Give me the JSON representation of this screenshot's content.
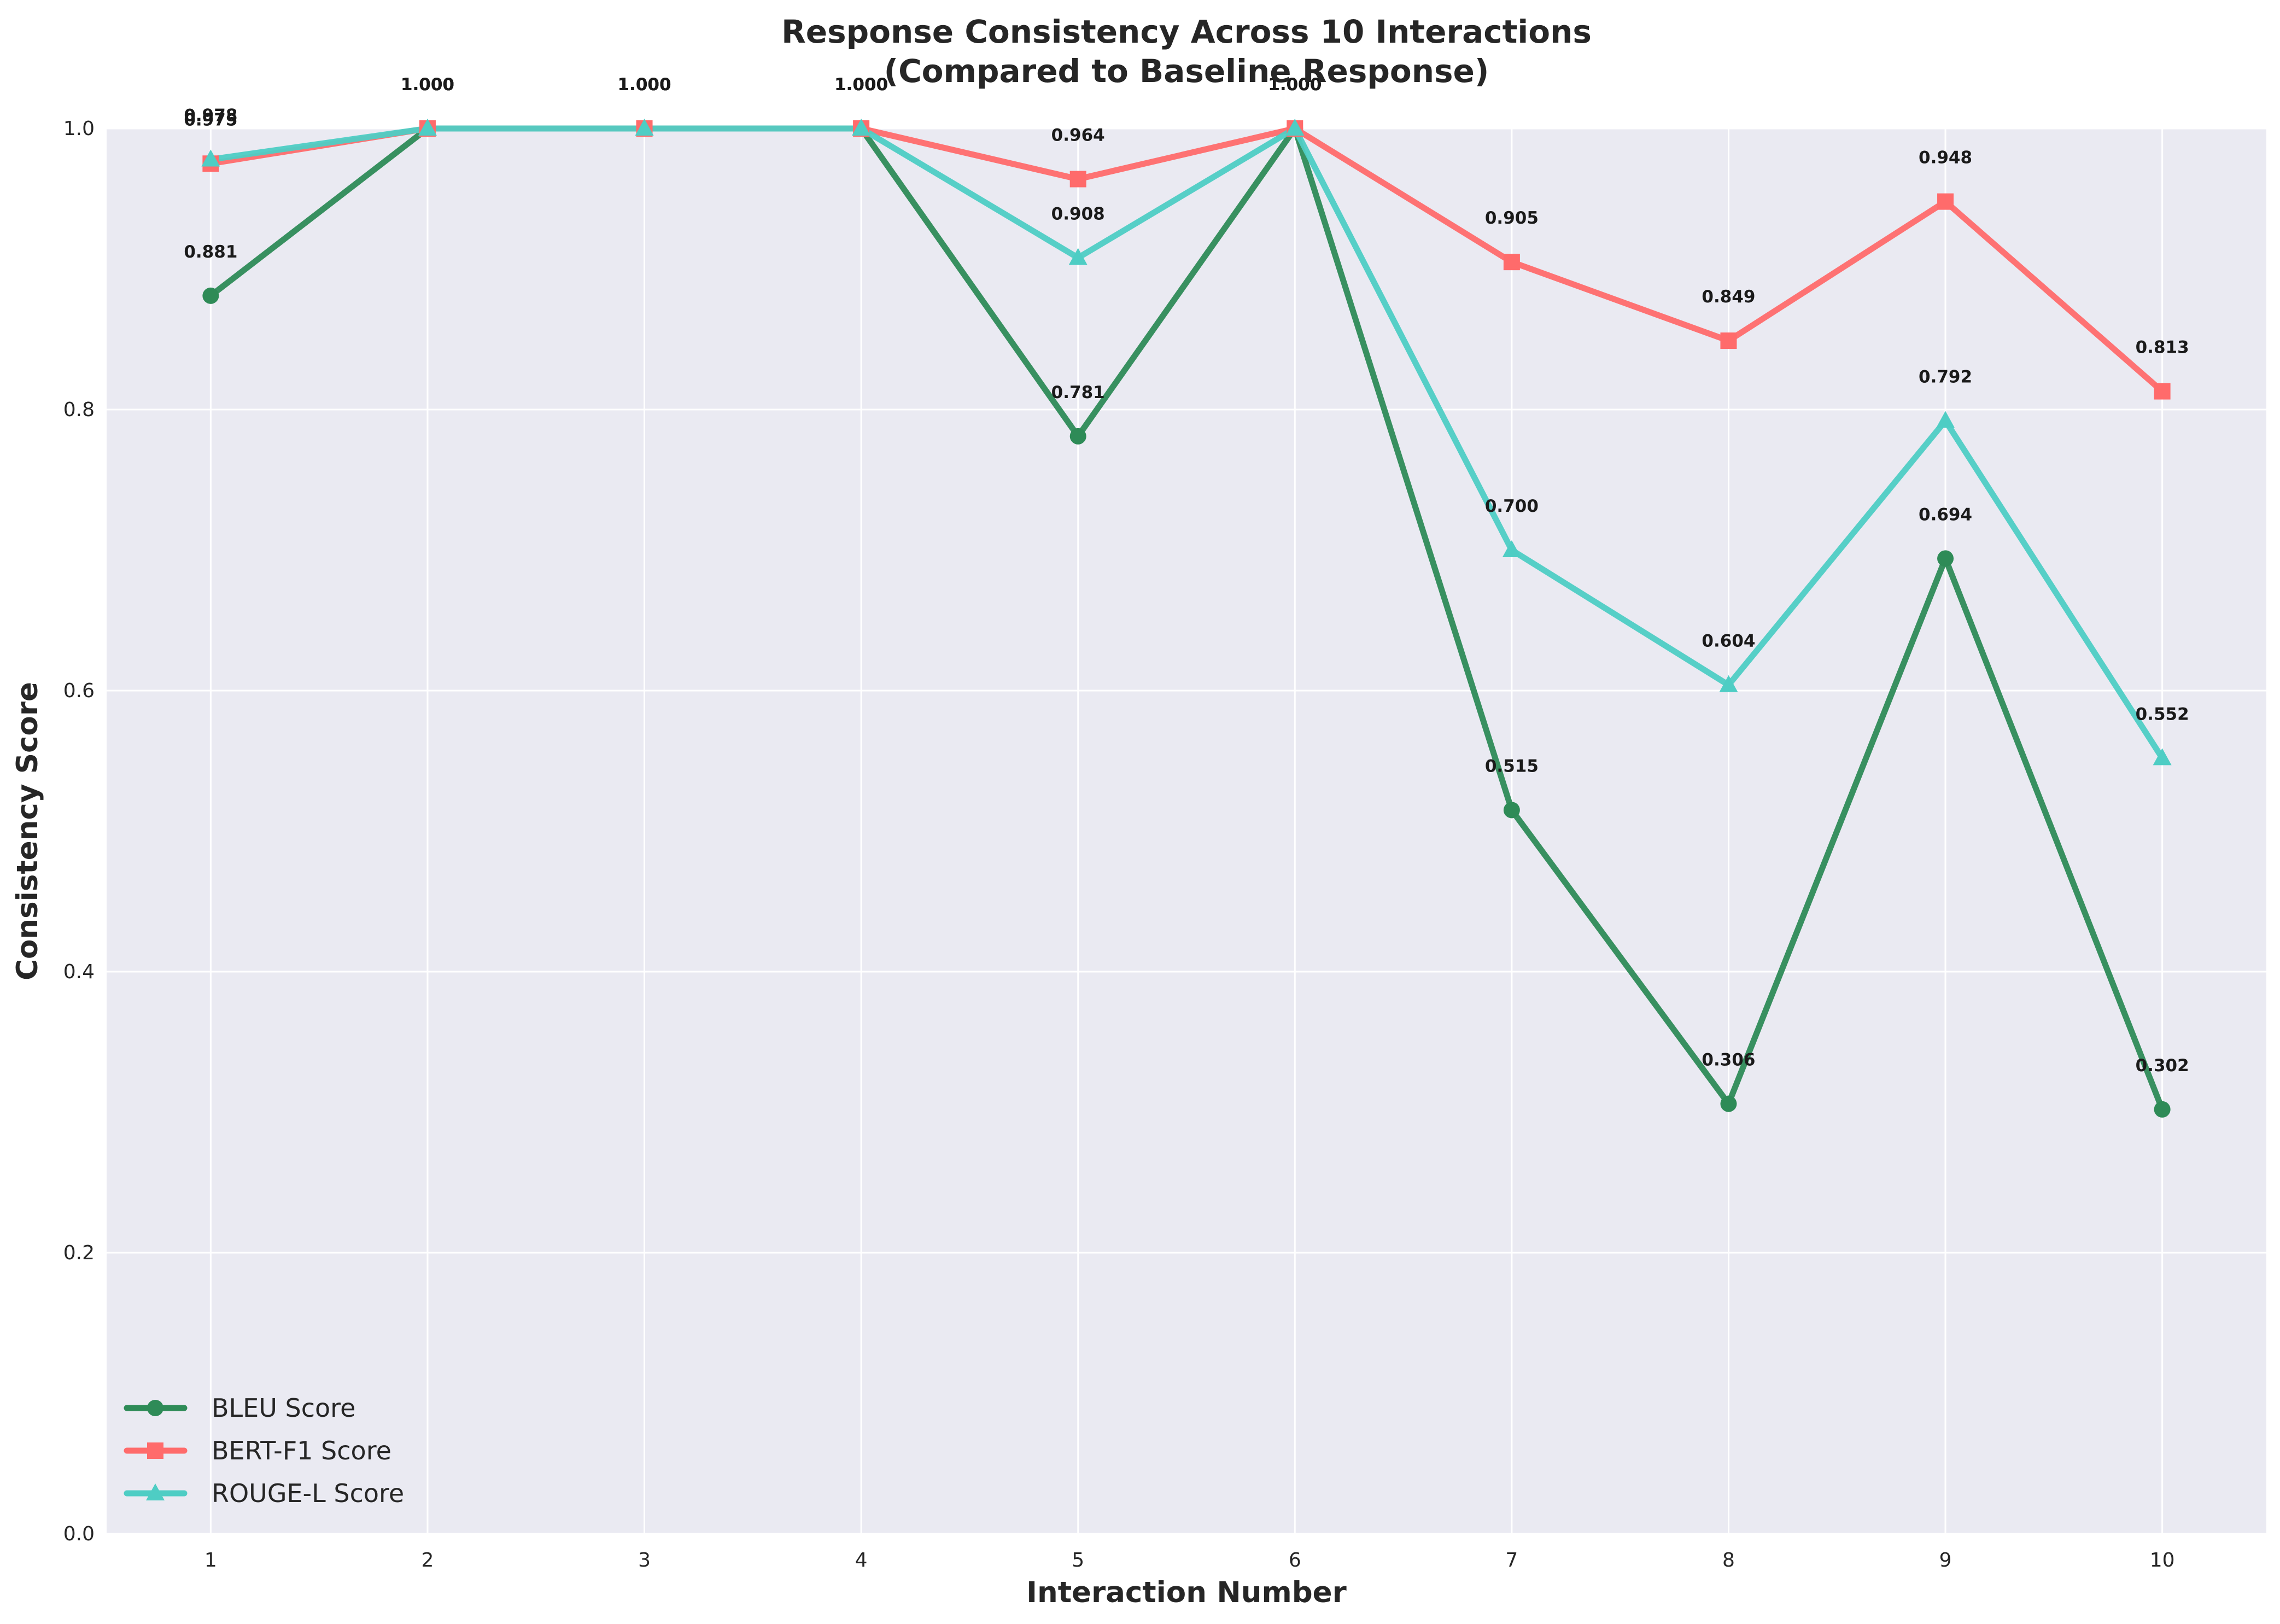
{
  "chart_data": {
    "type": "line",
    "title": "Response Consistency Across 10 Interactions",
    "subtitle": "(Compared to Baseline Response)",
    "xlabel": "Interaction Number",
    "ylabel": "Consistency Score",
    "x": [
      1,
      2,
      3,
      4,
      5,
      6,
      7,
      8,
      9,
      10
    ],
    "xlim": [
      0.52,
      10.48
    ],
    "ylim": [
      0,
      1
    ],
    "y_ticks": [
      "0.0",
      "0.2",
      "0.4",
      "0.6",
      "0.8",
      "1.0"
    ],
    "y_tick_values": [
      0,
      0.2,
      0.4,
      0.6,
      0.8,
      1.0
    ],
    "grid": true,
    "legend_position": "lower-left",
    "background_color": "#eaeaf2",
    "series": [
      {
        "name": "BLEU Score",
        "marker": "circle",
        "color": "#2e8b57",
        "values": [
          0.881,
          1.0,
          1.0,
          1.0,
          0.781,
          1.0,
          0.515,
          0.306,
          0.694,
          0.302
        ],
        "labels": [
          "0.881",
          "1.000",
          "1.000",
          "1.000",
          "0.781",
          "1.000",
          "0.515",
          "0.306",
          "0.694",
          "0.302"
        ]
      },
      {
        "name": "BERT-F1 Score",
        "marker": "square",
        "color": "#ff6b6b",
        "values": [
          0.975,
          1.0,
          1.0,
          1.0,
          0.964,
          1.0,
          0.905,
          0.849,
          0.948,
          0.813
        ],
        "labels": [
          "0.975",
          "1.000",
          "1.000",
          "1.000",
          "0.964",
          "1.000",
          "0.905",
          "0.849",
          "0.948",
          "0.813"
        ]
      },
      {
        "name": "ROUGE-L Score",
        "marker": "triangle",
        "color": "#4ecdc4",
        "values": [
          0.978,
          1.0,
          1.0,
          1.0,
          0.908,
          1.0,
          0.7,
          0.604,
          0.792,
          0.552
        ],
        "labels": [
          "0.978",
          "1.000",
          "1.000",
          "1.000",
          "0.908",
          "1.000",
          "0.700",
          "0.604",
          "0.792",
          "0.552"
        ]
      }
    ]
  }
}
